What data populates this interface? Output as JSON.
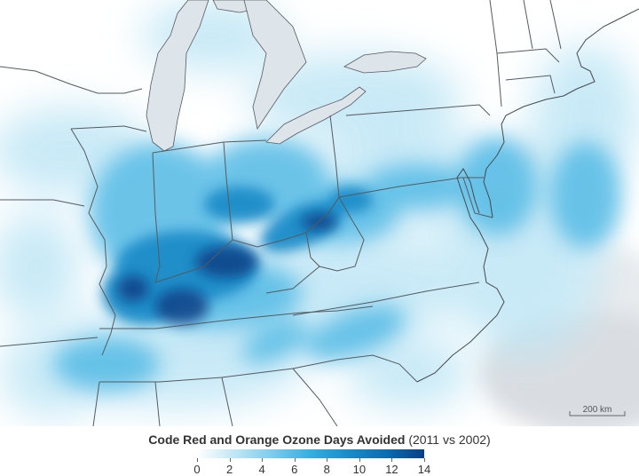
{
  "legend": {
    "title_bold": "Code Red and Orange Ozone Days Avoided",
    "title_suffix": " (2011 vs 2002)",
    "min": 0,
    "max": 14,
    "ticks": [
      "0",
      "2",
      "4",
      "6",
      "8",
      "10",
      "12",
      "14"
    ],
    "colors": [
      "#ffffff",
      "#bfe6f5",
      "#7ccbec",
      "#35aede",
      "#1a8cc8",
      "#0d6cb0",
      "#0a3f86"
    ]
  },
  "scalebar": {
    "label": "200 km"
  },
  "colors": {
    "land": "#ffffff",
    "lakes": "#dde4ea",
    "nodata_gray": "#d9dde1",
    "boundary": "#555a60"
  }
}
